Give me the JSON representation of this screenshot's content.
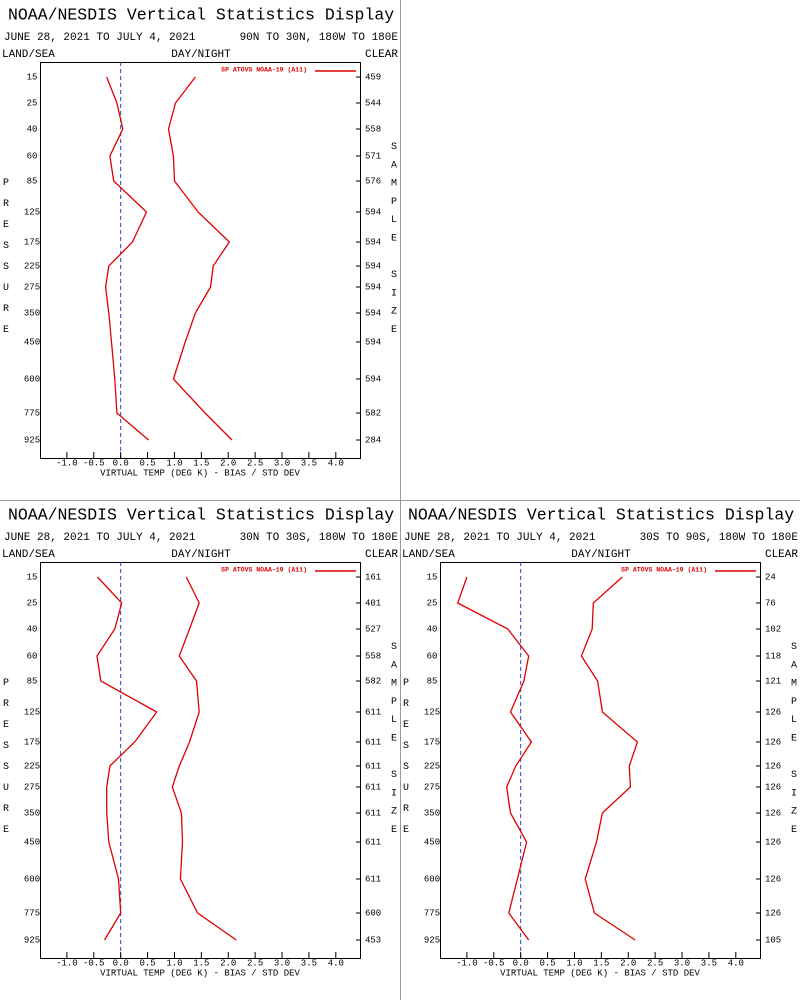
{
  "chart_data": [
    {
      "type": "line",
      "title": "NOAA/NESDIS Vertical Statistics Display",
      "date_range": "JUNE 28, 2021 TO JULY 4, 2021",
      "region": "90N TO 30N, 180W TO 180E",
      "header_left": "LAND/SEA",
      "header_center": "DAY/NIGHT",
      "header_right": "CLEAR",
      "y_label": "PRESSURE",
      "y2_label": "SAMPLE SIZE",
      "x_label": "VIRTUAL TEMP (DEG K) - BIAS / STD DEV",
      "categories": [
        "15",
        "25",
        "40",
        "60",
        "85",
        "125",
        "175",
        "225",
        "275",
        "350",
        "450",
        "600",
        "775",
        "925"
      ],
      "sample_size": [
        "459",
        "544",
        "558",
        "571",
        "576",
        "594",
        "594",
        "594",
        "594",
        "594",
        "594",
        "594",
        "582",
        "284"
      ],
      "series": [
        {
          "name": "SP ATOVS NOAA-19 (A11)",
          "color": "#e00000",
          "values": [
            -0.26,
            -0.07,
            0.04,
            -0.2,
            -0.13,
            0.48,
            0.22,
            -0.22,
            -0.28,
            -0.22,
            -0.17,
            -0.11,
            -0.07,
            0.52
          ]
        },
        {
          "color": "#e00000",
          "values": [
            1.39,
            1.02,
            0.89,
            0.98,
            1.0,
            1.44,
            2.02,
            1.72,
            1.67,
            1.39,
            1.2,
            0.98,
            1.57,
            2.07
          ]
        }
      ],
      "reference_line": 0,
      "reference_color": "#3040c0",
      "xlim": [
        -1.5,
        4.45
      ],
      "xticks": [
        {
          "value": -1,
          "label": "-1.0"
        },
        -0.5,
        {
          "value": 0,
          "label": "0.0"
        },
        0.5,
        {
          "value": 1,
          "label": "1.0"
        },
        1.5,
        {
          "value": 2,
          "label": "2.0"
        },
        2.5,
        {
          "value": 3,
          "label": "3.0"
        },
        3.5,
        {
          "value": 4,
          "label": "4.0"
        }
      ]
    },
    {
      "type": "line",
      "title": "NOAA/NESDIS Vertical Statistics Display",
      "date_range": "JUNE 28, 2021 TO JULY 4, 2021",
      "region": "30N TO 30S, 180W TO 180E",
      "header_left": "LAND/SEA",
      "header_center": "DAY/NIGHT",
      "header_right": "CLEAR",
      "y_label": "PRESSURE",
      "y2_label": "SAMPLE SIZE",
      "x_label": "VIRTUAL TEMP (DEG K) - BIAS / STD DEV",
      "categories": [
        "15",
        "25",
        "40",
        "60",
        "85",
        "125",
        "175",
        "225",
        "275",
        "350",
        "450",
        "600",
        "775",
        "925"
      ],
      "sample_size": [
        "161",
        "401",
        "527",
        "558",
        "582",
        "611",
        "611",
        "611",
        "611",
        "611",
        "611",
        "611",
        "600",
        "453"
      ],
      "series": [
        {
          "name": "SP ATOVS NOAA-19 (A11)",
          "color": "#e00000",
          "values": [
            -0.43,
            0.02,
            -0.11,
            -0.44,
            -0.37,
            0.67,
            0.26,
            -0.2,
            -0.26,
            -0.26,
            -0.22,
            -0.04,
            0.0,
            -0.3
          ]
        },
        {
          "color": "#e00000",
          "values": [
            1.22,
            1.46,
            1.28,
            1.09,
            1.41,
            1.46,
            1.28,
            1.09,
            0.96,
            1.13,
            1.15,
            1.11,
            1.43,
            2.15
          ]
        }
      ],
      "reference_line": 0,
      "reference_color": "#3040c0",
      "xlim": [
        -1.5,
        4.45
      ],
      "xticks": [
        {
          "value": -1,
          "label": "-1.0"
        },
        -0.5,
        {
          "value": 0,
          "label": "0.0"
        },
        0.5,
        {
          "value": 1,
          "label": "1.0"
        },
        1.5,
        {
          "value": 2,
          "label": "2.0"
        },
        2.5,
        {
          "value": 3,
          "label": "3.0"
        },
        3.5,
        {
          "value": 4,
          "label": "4.0"
        }
      ]
    },
    {
      "type": "line",
      "title": "NOAA/NESDIS Vertical Statistics Display",
      "date_range": "JUNE 28, 2021 TO JULY 4, 2021",
      "region": "30S TO 90S, 180W TO 180E",
      "header_left": "LAND/SEA",
      "header_center": "DAY/NIGHT",
      "header_right": "CLEAR",
      "y_label": "PRESSURE",
      "y2_label": "SAMPLE SIZE",
      "x_label": "VIRTUAL TEMP (DEG K) - BIAS / STD DEV",
      "categories": [
        "15",
        "25",
        "40",
        "60",
        "85",
        "125",
        "175",
        "225",
        "275",
        "350",
        "450",
        "600",
        "775",
        "925"
      ],
      "sample_size": [
        "24",
        "76",
        "102",
        "118",
        "121",
        "126",
        "126",
        "126",
        "126",
        "126",
        "126",
        "126",
        "126",
        "105"
      ],
      "series": [
        {
          "name": "SP ATOVS NOAA-19 (A11)",
          "color": "#e00000",
          "values": [
            -1.0,
            -1.17,
            -0.24,
            0.15,
            0.06,
            -0.19,
            0.2,
            -0.09,
            -0.26,
            -0.19,
            0.11,
            -0.06,
            -0.22,
            0.15
          ]
        },
        {
          "color": "#e00000",
          "values": [
            1.89,
            1.35,
            1.33,
            1.13,
            1.43,
            1.52,
            2.17,
            2.02,
            2.04,
            1.52,
            1.41,
            1.2,
            1.37,
            2.13
          ]
        }
      ],
      "reference_line": 0,
      "reference_color": "#3040c0",
      "xlim": [
        -1.5,
        4.45
      ],
      "xticks": [
        {
          "value": -1,
          "label": "-1.0"
        },
        -0.5,
        {
          "value": 0,
          "label": "0.0"
        },
        0.5,
        {
          "value": 1,
          "label": "1.0"
        },
        1.5,
        {
          "value": 2,
          "label": "2.0"
        },
        2.5,
        {
          "value": 3,
          "label": "3.0"
        },
        3.5,
        {
          "value": 4,
          "label": "4.0"
        }
      ]
    }
  ]
}
